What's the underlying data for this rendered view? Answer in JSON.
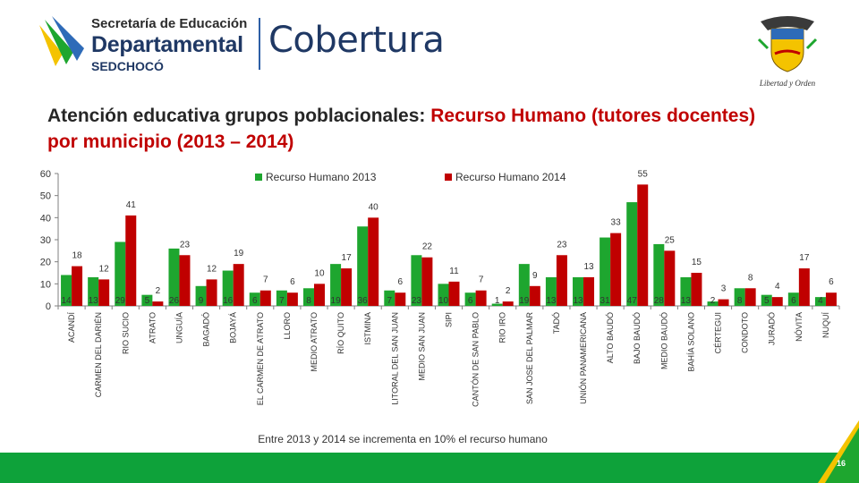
{
  "header": {
    "logo_line1": "Secretaría de Educación",
    "logo_line2": "Departamental",
    "logo_line3": "SEDCHOCÓ",
    "section": "Cobertura",
    "emblem_motto": "Libertad y Orden"
  },
  "slide": {
    "title_black": "Atención educativa grupos poblacionales: ",
    "title_red": "Recurso Humano (tutores docentes) por municipio (2013 – 2014)",
    "footnote": "Entre 2013 y 2014 se incrementa en 10% el recurso humano",
    "page_number": "16"
  },
  "colors": {
    "green": "#1ea62f",
    "red": "#c00000",
    "bar_green": "#0ea23a"
  },
  "chart_data": {
    "type": "bar",
    "categories": [
      "ACANDÍ",
      "CARMEN DEL DARIÉN",
      "RIO SUCIO",
      "ATRATO",
      "UNGUÍA",
      "BAGADÓ",
      "BOJAYÁ",
      "EL CARMEN DE ATRATO",
      "LLORO",
      "MEDIO ATRATO",
      "RÍO QUITO",
      "ISTMINA",
      "LITORAL DEL SAN JUAN",
      "MEDIO SAN JUAN",
      "SIPI",
      "CANTÓN DE SAN PABLO",
      "RIO IRO",
      "SAN JOSE DEL PALMAR",
      "TADÓ",
      "UNIÓN PANAMERICANA",
      "ALTO BAUDÓ",
      "BAJO BAUDÓ",
      "MEDIO BAUDÓ",
      "BAHÍA SOLANO",
      "CÉRTEGUI",
      "CONDOTO",
      "JURADÓ",
      "NÓVITA",
      "NUQUÍ"
    ],
    "series": [
      {
        "name": "Recurso Humano 2013",
        "color": "#1ea62f",
        "values": [
          14,
          13,
          29,
          5,
          26,
          9,
          16,
          6,
          7,
          8,
          19,
          36,
          7,
          23,
          10,
          6,
          1,
          19,
          13,
          13,
          31,
          47,
          28,
          13,
          2,
          8,
          5,
          6,
          4
        ],
        "labels": [
          "14",
          "13",
          "29",
          "5",
          "26",
          "9",
          "16",
          "6",
          "7",
          "8",
          "19",
          "36",
          "7",
          "23",
          "10",
          "6",
          "1",
          "19",
          "13",
          "13",
          "31",
          "47",
          "28",
          "13",
          "2",
          "8",
          "5",
          "6",
          "4"
        ]
      },
      {
        "name": "Recurso Humano 2014",
        "color": "#c00000",
        "values": [
          18,
          12,
          41,
          2,
          23,
          12,
          19,
          7,
          6,
          10,
          17,
          40,
          6,
          22,
          11,
          7,
          2,
          9,
          23,
          13,
          33,
          55,
          25,
          15,
          3,
          8,
          4,
          17,
          6
        ],
        "labels": [
          "18",
          "12",
          "41",
          "2",
          "23",
          "12",
          "19",
          "7",
          "6",
          "10",
          "17",
          "40",
          "6",
          "22",
          "11",
          "7",
          "2",
          "9",
          "23",
          "13",
          "33",
          "55",
          "25",
          "15",
          "3",
          "8",
          "4",
          "17",
          "6"
        ]
      }
    ],
    "yticks": [
      "0",
      "10",
      "20",
      "30",
      "40",
      "50",
      "60"
    ],
    "ylim": [
      0,
      60
    ],
    "legend_position": "top-center",
    "grid": false
  }
}
